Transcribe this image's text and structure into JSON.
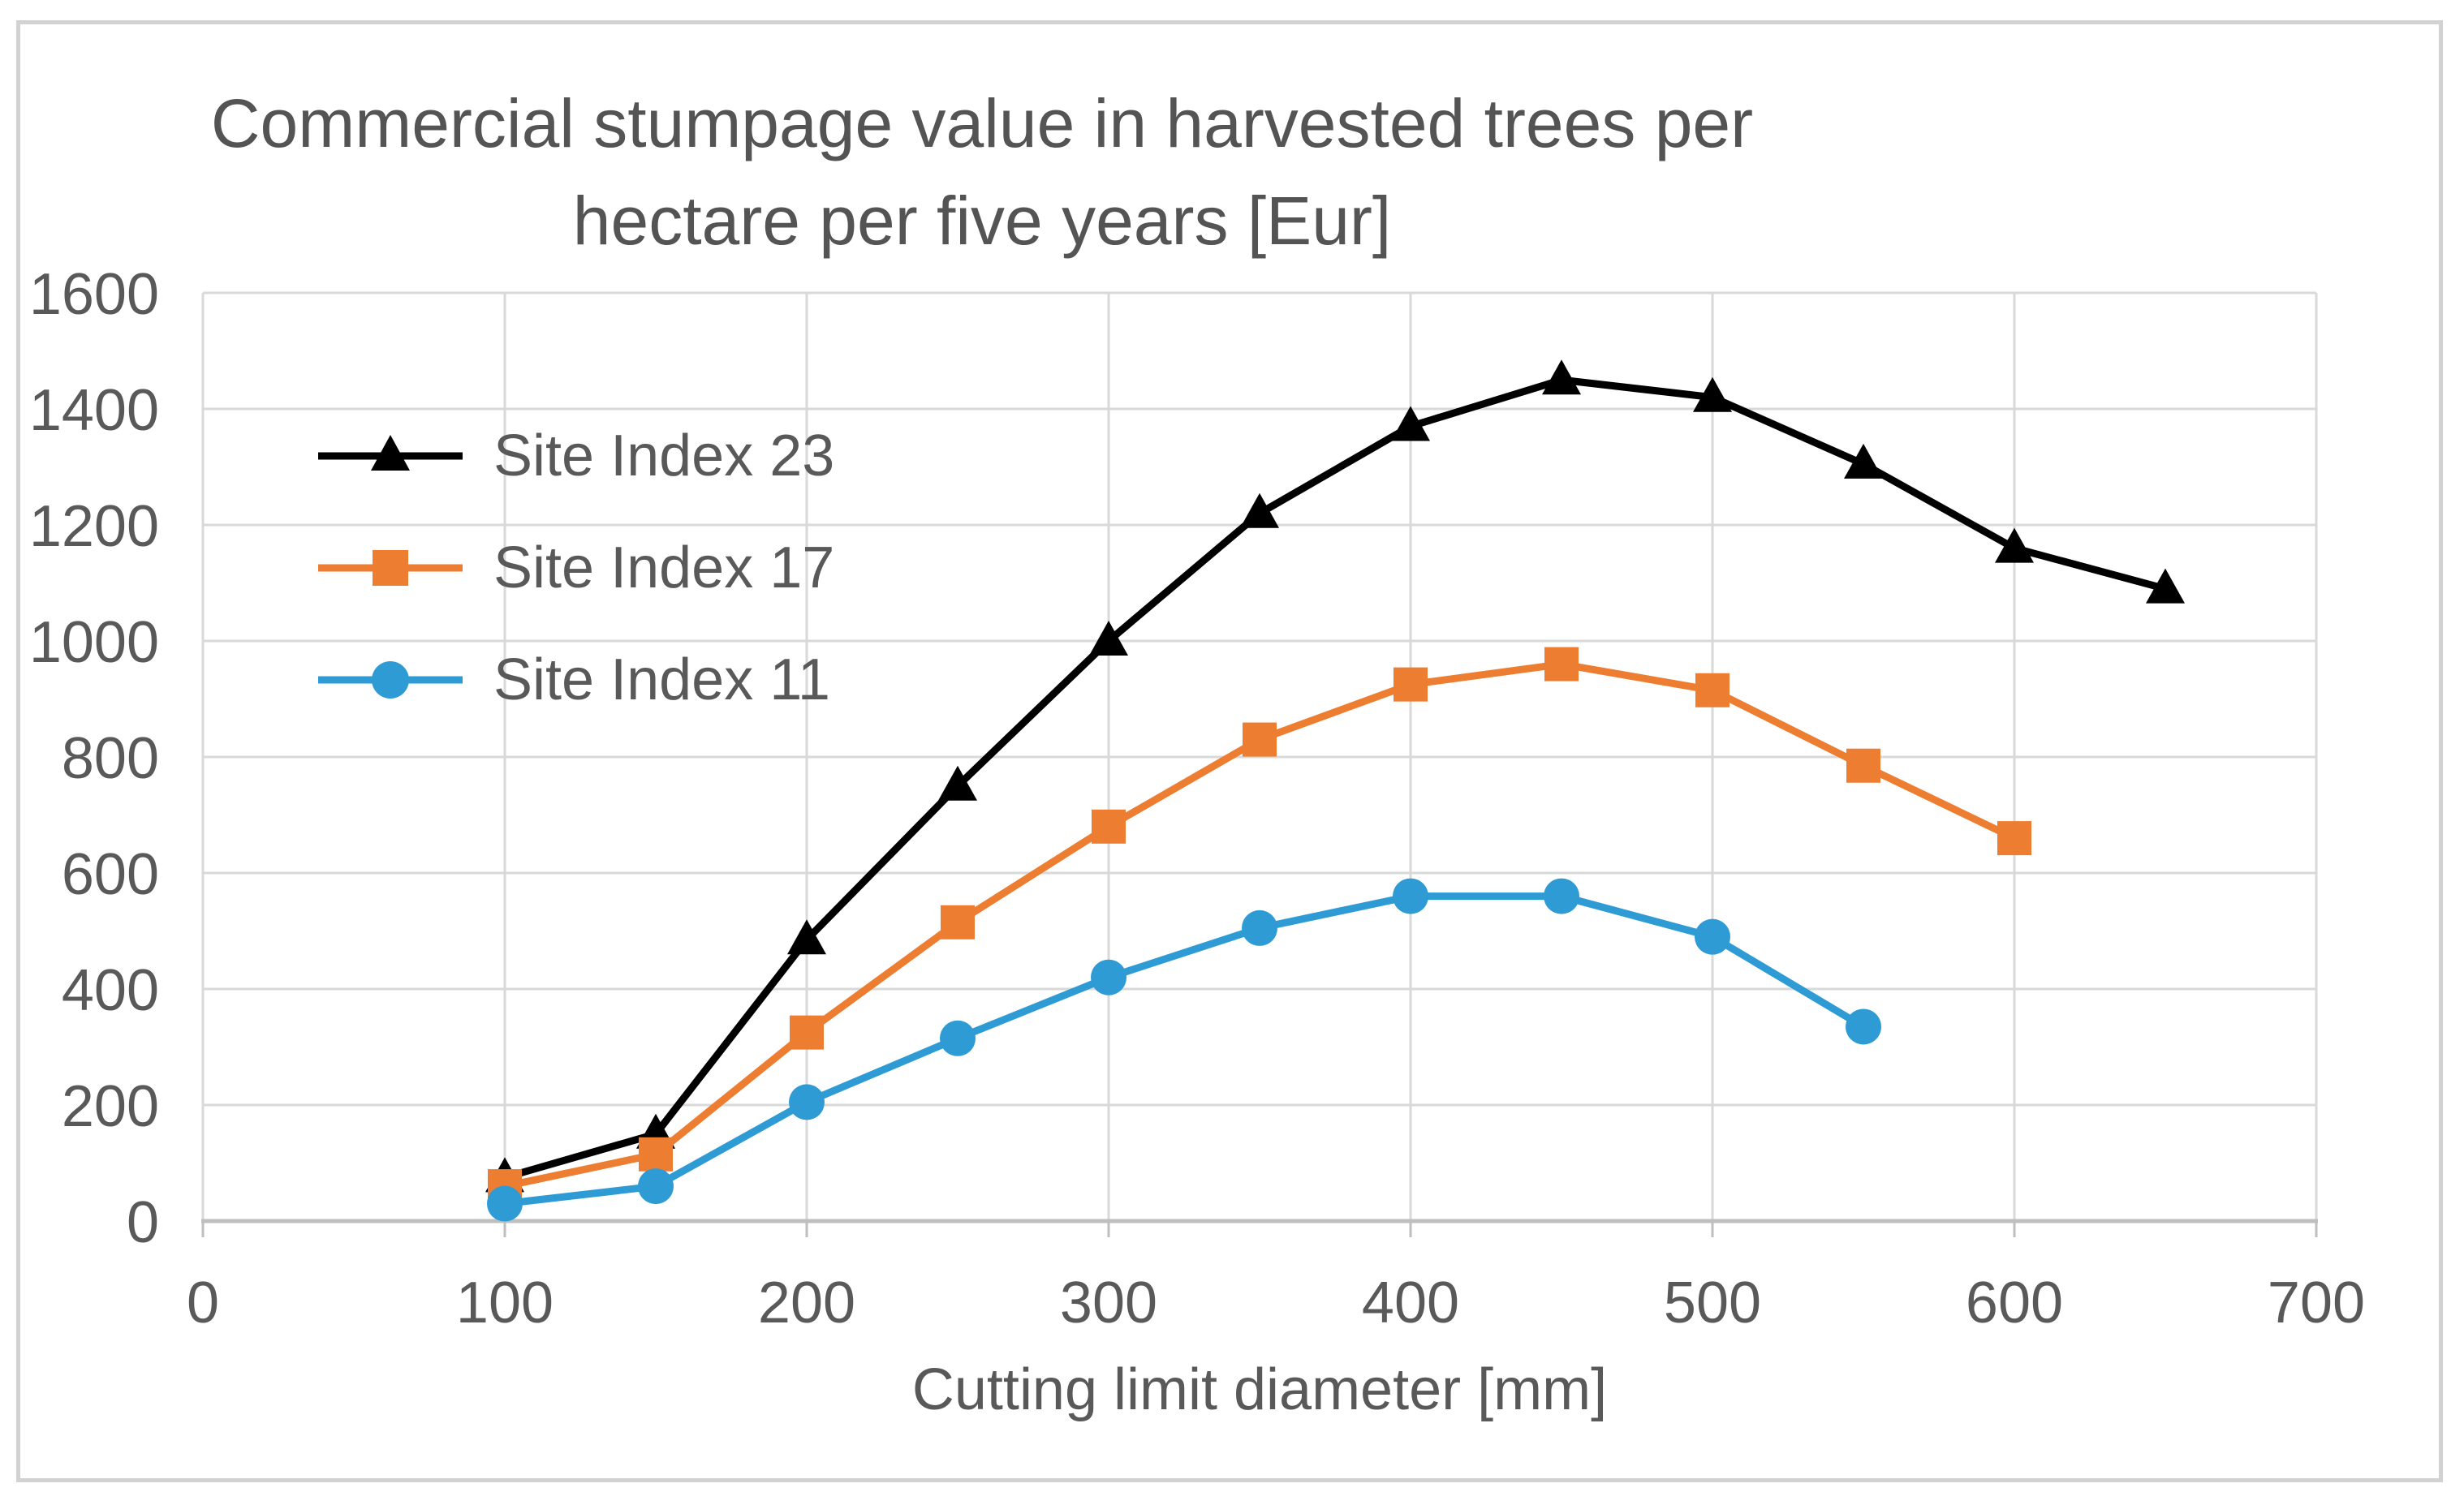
{
  "figure": {
    "title_lines": [
      "Commercial stumpage value in harvested trees per",
      "hectare per five years [Eur]"
    ]
  },
  "chart_data": {
    "type": "line",
    "title": "Commercial stumpage value in harvested trees per hectare per five years [Eur]",
    "xlabel": "Cutting limit diameter [mm]",
    "ylabel": "",
    "xlim": [
      0,
      700
    ],
    "ylim": [
      0,
      1600
    ],
    "x_ticks": [
      0,
      100,
      200,
      300,
      400,
      500,
      600,
      700
    ],
    "y_ticks": [
      0,
      200,
      400,
      600,
      800,
      1000,
      1200,
      1400,
      1600
    ],
    "grid": true,
    "legend_position": "inside-upper-left",
    "x": [
      100,
      150,
      200,
      250,
      300,
      350,
      400,
      450,
      500,
      550,
      600,
      650
    ],
    "series": [
      {
        "name": "Site Index 23",
        "marker": "triangle",
        "color": "#000000",
        "values": [
          75,
          150,
          485,
          750,
          1000,
          1220,
          1370,
          1450,
          1420,
          1305,
          1160,
          1090
        ]
      },
      {
        "name": "Site Index 17",
        "marker": "square",
        "color": "#ED7D31",
        "values": [
          60,
          115,
          325,
          515,
          680,
          830,
          925,
          960,
          915,
          785,
          660
        ]
      },
      {
        "name": "Site Index 11",
        "marker": "circle",
        "color": "#2E9BD5",
        "values": [
          30,
          60,
          205,
          315,
          420,
          505,
          560,
          560,
          490,
          335
        ]
      }
    ]
  },
  "style": {
    "grid_color": "#D9D9D9",
    "axis_color": "#BFBFBF",
    "text_color": "#595959",
    "title_color": "#545454",
    "border_color": "#D2D2D2",
    "background": "#FFFFFF"
  }
}
